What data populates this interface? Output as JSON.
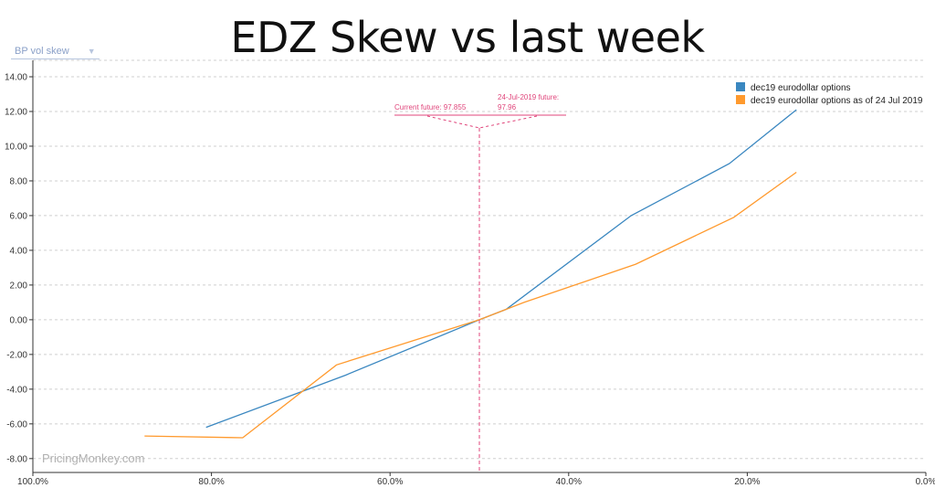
{
  "page": {
    "title": "EDZ Skew vs last week",
    "dropdown_label": "BP vol skew",
    "watermark": "PricingMonkey.com"
  },
  "colors": {
    "series1": "#3a87c0",
    "series2": "#ff9a2e",
    "annotation": "#e0457b",
    "grid": "#cfcfcf"
  },
  "chart_data": {
    "type": "line",
    "title": "EDZ Skew vs last week",
    "xlabel": "",
    "ylabel": "",
    "xlim": [
      100,
      0
    ],
    "ylim": [
      -8.8,
      14
    ],
    "x_reversed": true,
    "x_ticks": [
      100,
      80,
      60,
      40,
      20,
      0
    ],
    "x_tick_labels": [
      "100.0%",
      "80.0%",
      "60.0%",
      "40.0%",
      "20.0%",
      "0.0%"
    ],
    "y_ticks": [
      14,
      12,
      10,
      8,
      6,
      4,
      2,
      0,
      -2,
      -4,
      -6,
      -8
    ],
    "y_tick_labels": [
      "14.00",
      "12.00",
      "10.00",
      "8.00",
      "6.00",
      "4.00",
      "2.00",
      "0.00",
      "-2.00",
      "-4.00",
      "-6.00",
      "-8.00"
    ],
    "grid": "horizontal dashed",
    "legend_position": "top-right",
    "series": [
      {
        "name": "dec19 eurodollar options",
        "color": "#3a87c0",
        "points": [
          [
            80.6,
            -6.2
          ],
          [
            65,
            -3.2
          ],
          [
            50,
            0
          ],
          [
            47,
            0.6
          ],
          [
            33,
            6.0
          ],
          [
            22,
            9.0
          ],
          [
            14.5,
            12.1
          ]
        ]
      },
      {
        "name": "dec19 eurodollar options as of 24 Jul 2019",
        "color": "#ff9a2e",
        "points": [
          [
            87.5,
            -6.7
          ],
          [
            76.5,
            -6.8
          ],
          [
            66,
            -2.6
          ],
          [
            50,
            0
          ],
          [
            45,
            1.0
          ],
          [
            32.5,
            3.2
          ],
          [
            21.5,
            5.9
          ],
          [
            14.5,
            8.5
          ]
        ]
      }
    ],
    "annotations": {
      "vertical_line_x": 50,
      "current_future_label": "Current future: 97.855",
      "previous_future_label_line1": "24-Jul-2019 future:",
      "previous_future_label_line2": "97.96"
    }
  }
}
